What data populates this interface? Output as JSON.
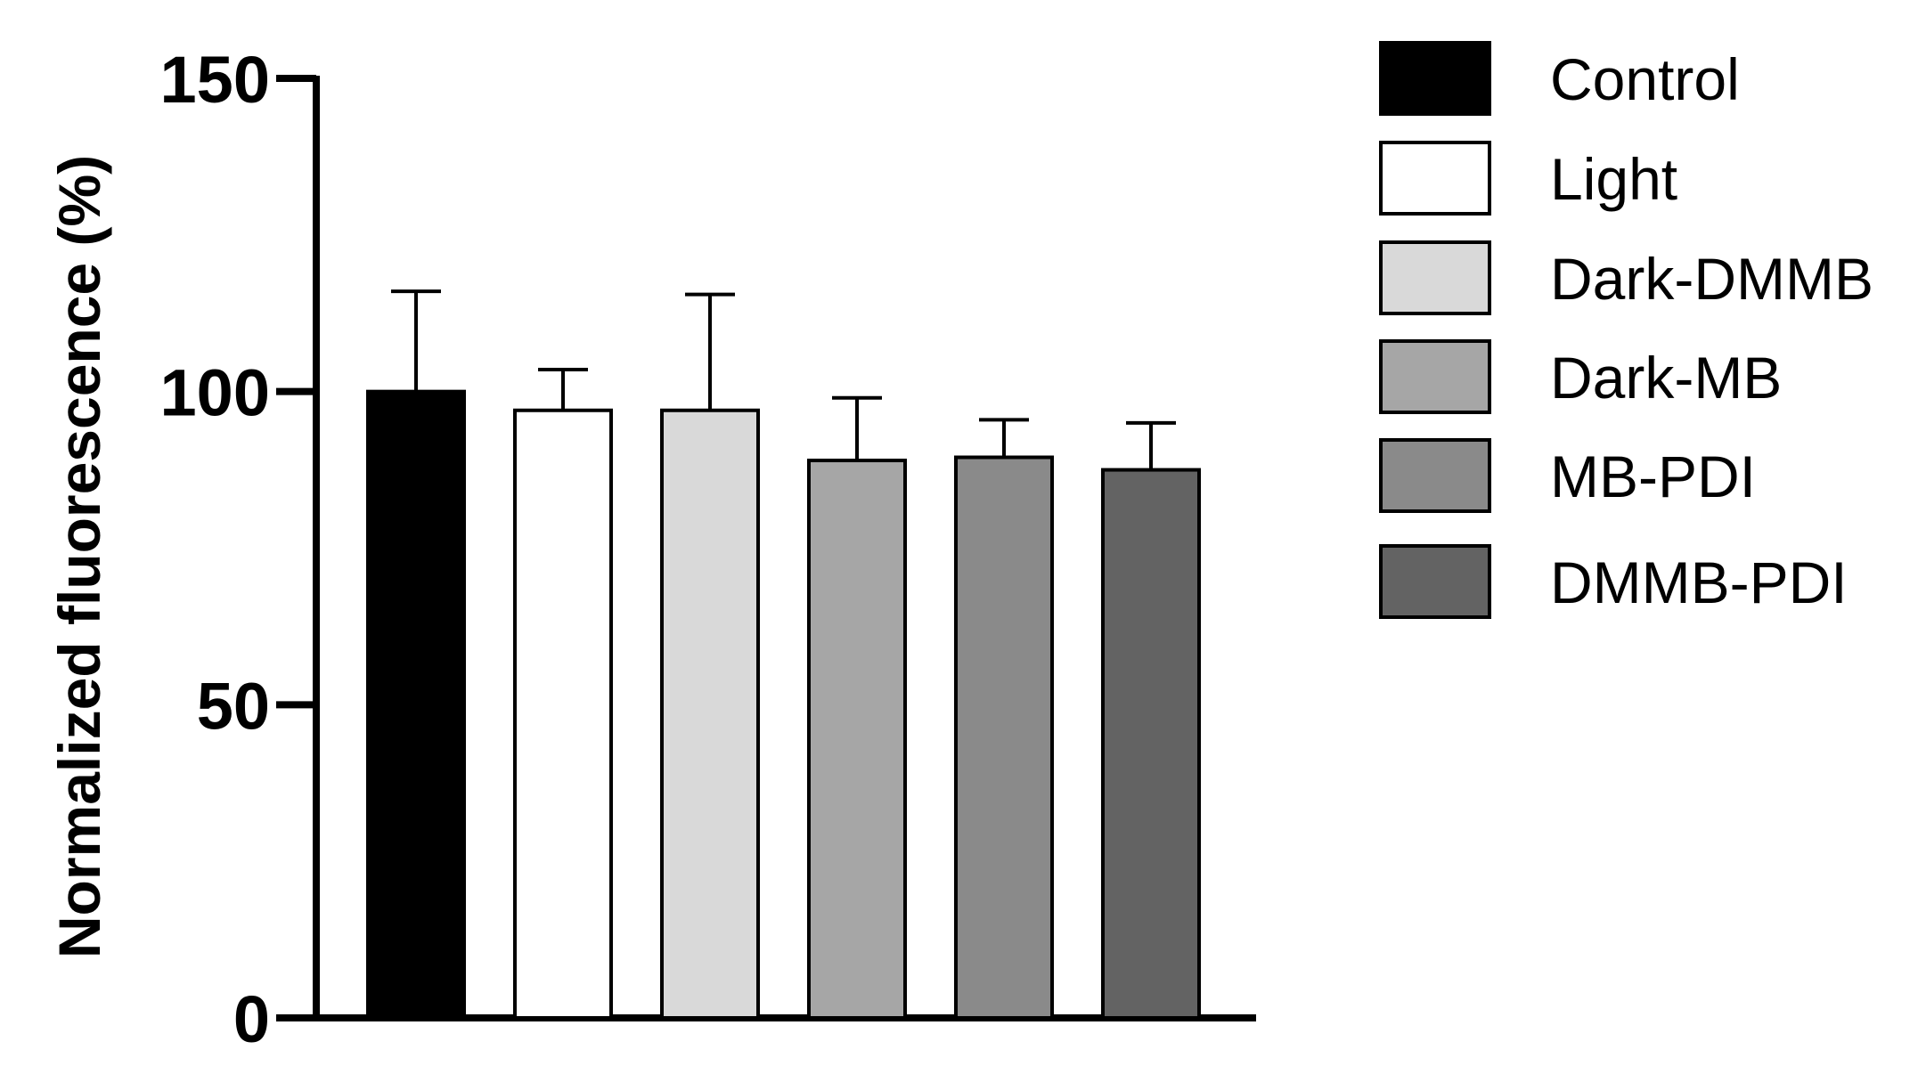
{
  "chart_data": {
    "type": "bar",
    "categories": [
      "Control",
      "Light",
      "Dark-DMMB",
      "Dark-MB",
      "MB-PDI",
      "DMMB-PDI"
    ],
    "values": [
      100,
      97,
      97,
      89,
      89.5,
      87.5
    ],
    "errors": [
      16,
      6.5,
      18.5,
      10,
      6,
      7.5
    ],
    "colors": [
      "#000000",
      "#ffffff",
      "#d9d9d9",
      "#a6a6a6",
      "#8a8a8a",
      "#636363"
    ],
    "title": "",
    "xlabel": "",
    "ylabel": "Normalized fluorescence (%)",
    "ylim": [
      0,
      150
    ],
    "yticks": [
      0,
      50,
      100,
      150
    ],
    "ytick_labels": [
      "0",
      "50",
      "100",
      "150"
    ],
    "legend": {
      "position": "right",
      "entries": [
        "Control",
        "Light",
        "Dark-DMMB",
        "Dark-MB",
        "MB-PDI",
        "DMMB-PDI"
      ]
    },
    "grid": false
  }
}
